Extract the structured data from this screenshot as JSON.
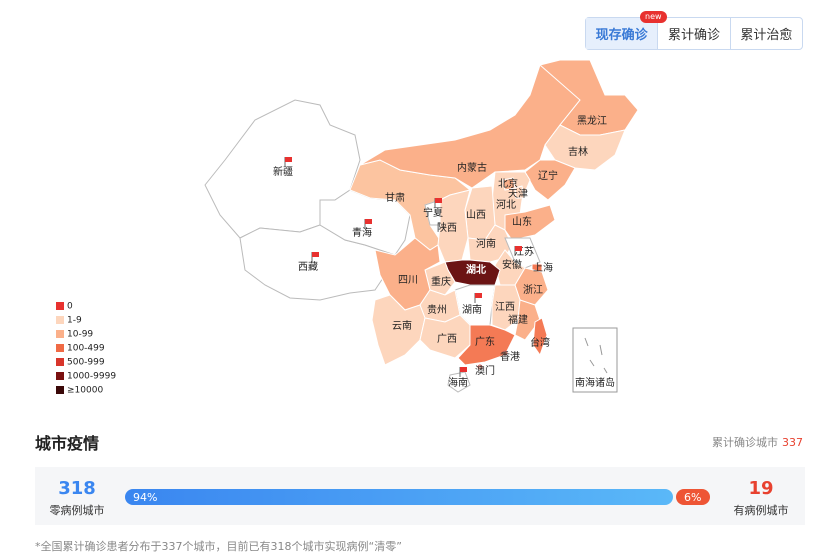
{
  "tabs": {
    "items": [
      "现存确诊",
      "累计确诊",
      "累计治愈"
    ],
    "badge": "new"
  },
  "map": {
    "regions": [
      "新疆",
      "西藏",
      "青海",
      "甘肃",
      "内蒙古",
      "黑龙江",
      "吉林",
      "辽宁",
      "河北",
      "北京",
      "天津",
      "山西",
      "山东",
      "宁夏",
      "陕西",
      "河南",
      "江苏",
      "安徽",
      "上海",
      "湖北",
      "重庆",
      "四川",
      "浙江",
      "湖南",
      "江西",
      "贵州",
      "云南",
      "广西",
      "广东",
      "福建",
      "台湾",
      "海南",
      "香港",
      "澳门"
    ],
    "inset_label": "南海诸岛",
    "legend": [
      "0",
      "1-9",
      "10-99",
      "100-499",
      "500-999",
      "1000-9999",
      "≥10000"
    ]
  },
  "city_section": {
    "title": "城市疫情",
    "total_label": "累计确诊城市",
    "total": 337,
    "zero_count": 318,
    "zero_label": "零病例城市",
    "zero_share": 94,
    "zero_share_label": "94%",
    "case_share": 6,
    "case_share_label": "6%",
    "case_count": 19,
    "case_label": "有病例城市",
    "footnote": "*全国累计确诊患者分布于337个城市，目前已有318个城市实现病例“清零”"
  }
}
